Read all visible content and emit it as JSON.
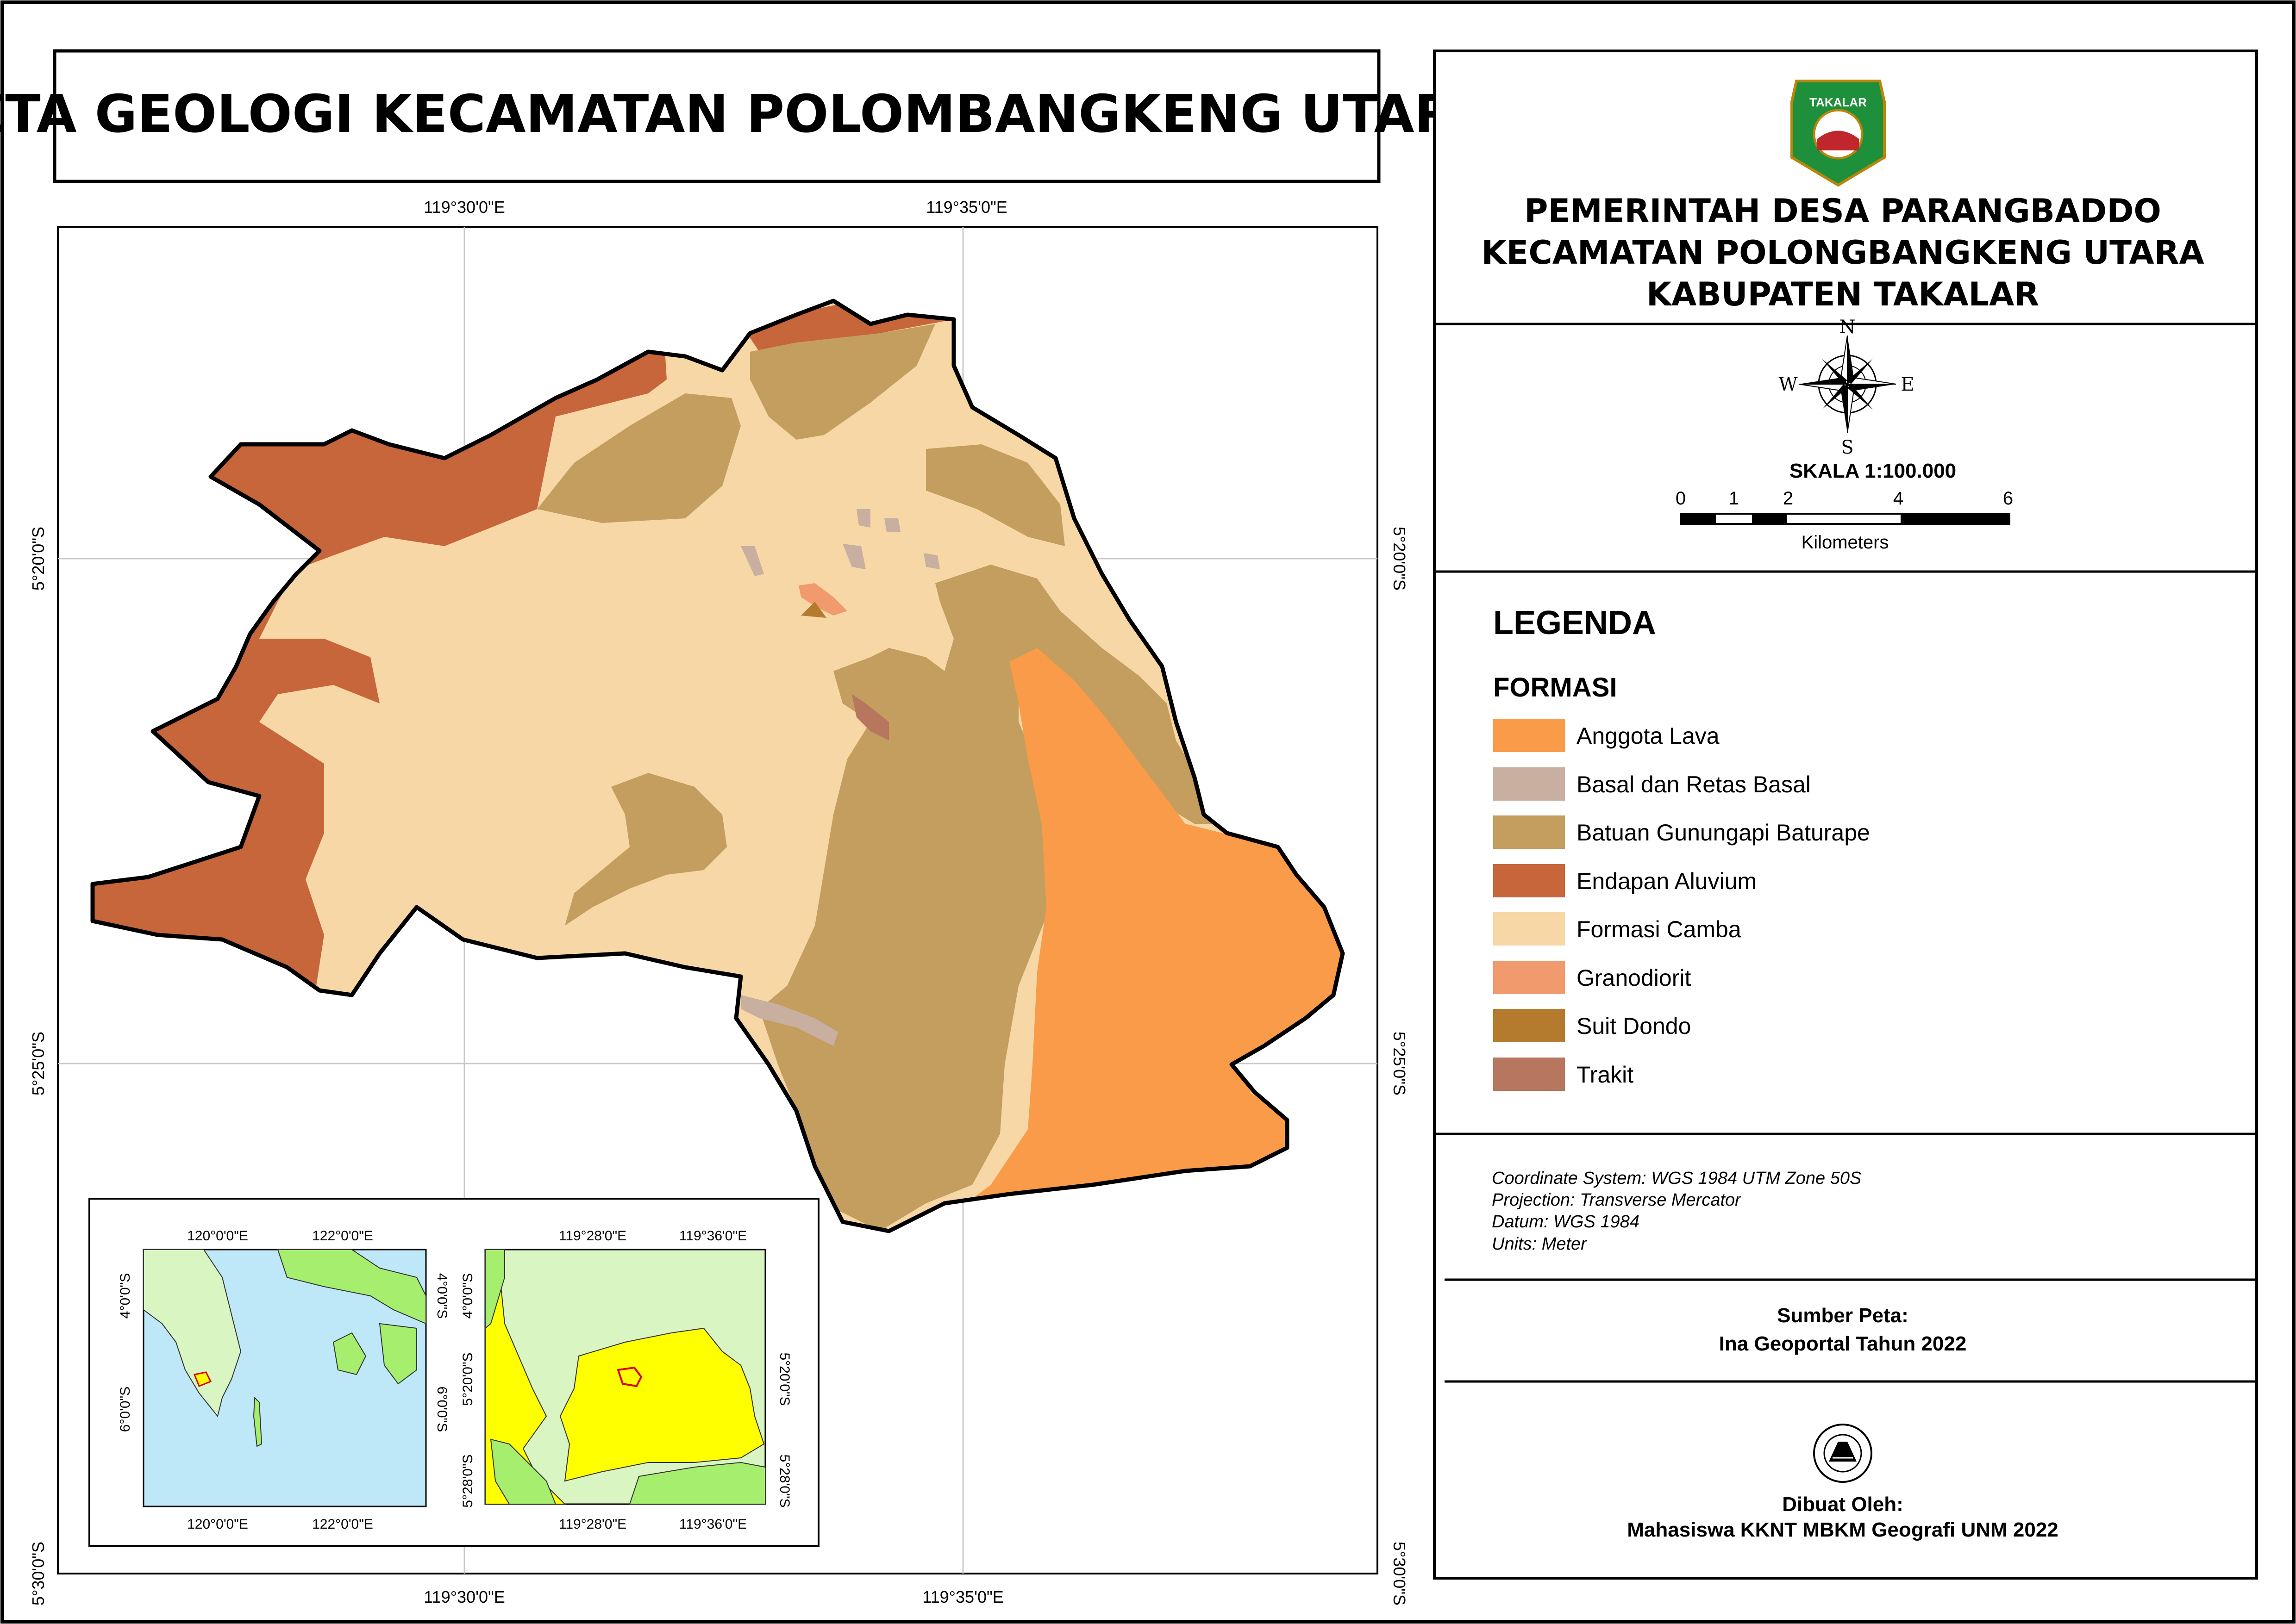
{
  "title": "PETA GEOLOGI KECAMATAN POLOMBANGKENG UTARA",
  "header": {
    "line1": "PEMERINTAH DESA PARANGBADDO",
    "line2": "KECAMATAN POLONGBANGKENG UTARA",
    "line3": "KABUPATEN TAKALAR",
    "logo_text": "TAKALAR"
  },
  "compass": {
    "n": "N",
    "s": "S",
    "e": "E",
    "w": "W"
  },
  "scale": {
    "label": "SKALA  1:100.000",
    "ticks": [
      "0",
      "1",
      "2",
      "4",
      "6"
    ],
    "unit": "Kilometers"
  },
  "legend": {
    "title": "LEGENDA",
    "subtitle": "FORMASI",
    "items": [
      {
        "label": "Anggota Lava",
        "color": "#F99B48"
      },
      {
        "label": "Basal dan Retas Basal",
        "color": "#C9AFA0"
      },
      {
        "label": "Batuan Gunungapi Baturape",
        "color": "#C39E5E"
      },
      {
        "label": "Endapan Aluvium",
        "color": "#C7663A"
      },
      {
        "label": "Formasi Camba",
        "color": "#F7D7A5"
      },
      {
        "label": "Granodiorit",
        "color": "#F09A6E"
      },
      {
        "label": "Suit Dondo",
        "color": "#B47B2E"
      },
      {
        "label": "Trakit",
        "color": "#B7775F"
      }
    ]
  },
  "coordinate_info": {
    "line1": "Coordinate System: WGS 1984 UTM Zone 50S",
    "line2": "Projection: Transverse Mercator",
    "line3": "Datum: WGS 1984",
    "line4": "Units: Meter"
  },
  "source": {
    "label": "Sumber Peta:",
    "value": "Ina Geoportal Tahun 2022"
  },
  "author": {
    "label": "Dibuat Oleh:",
    "value": "Mahasiswa KKNT MBKM Geografi UNM 2022"
  },
  "grid_labels": {
    "lon_left": "119°30'0\"E",
    "lon_right": "119°35'0\"E",
    "lat_top": "5°20'0\"S",
    "lat_mid": "5°25'0\"S",
    "lat_bottom": "5°30'0\"S"
  },
  "inset1": {
    "lon_a": "120°0'0\"E",
    "lon_b": "122°0'0\"E",
    "lat_a": "4°0'0\"S",
    "lat_b": "6°0'0\"S"
  },
  "inset2": {
    "lon_a": "119°28'0\"E",
    "lon_b": "119°36'0\"E",
    "lat_a": "4°0'0\"S",
    "lat_b": "5°20'0\"S",
    "lat_c": "5°28'0\"S"
  },
  "map_colors": {
    "sea": "#BEE8F8",
    "land_green": "#A6EE6E",
    "land_light": "#D8F5C2",
    "yellow": "#FFFF00",
    "outline": "#000000"
  }
}
